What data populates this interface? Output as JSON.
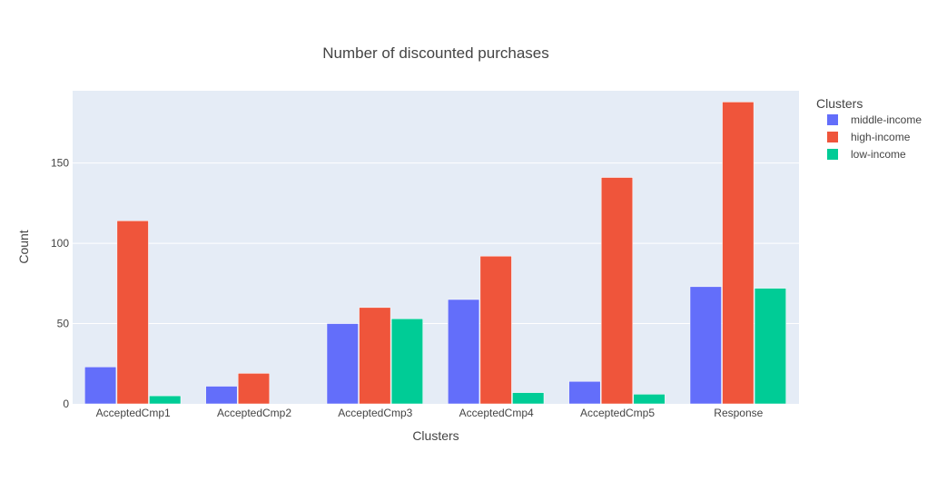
{
  "chart_data": {
    "type": "bar",
    "title": "Number of discounted purchases",
    "xlabel": "Clusters",
    "ylabel": "Count",
    "categories": [
      "AcceptedCmp1",
      "AcceptedCmp2",
      "AcceptedCmp3",
      "AcceptedCmp4",
      "AcceptedCmp5",
      "Response"
    ],
    "series": [
      {
        "name": "middle-income",
        "color": "#636efa",
        "values": [
          23,
          11,
          50,
          65,
          14,
          73
        ]
      },
      {
        "name": "high-income",
        "color": "#ef553b",
        "values": [
          114,
          19,
          60,
          92,
          141,
          188
        ]
      },
      {
        "name": "low-income",
        "color": "#00cc96",
        "values": [
          5,
          0,
          53,
          7,
          6,
          72
        ]
      }
    ],
    "ylim": [
      0,
      195
    ],
    "yticks": [
      0,
      50,
      100,
      150
    ],
    "grid": true,
    "legend": {
      "title": "Clusters",
      "placement": "top-right"
    },
    "plot_background": "#e5ecf6"
  }
}
